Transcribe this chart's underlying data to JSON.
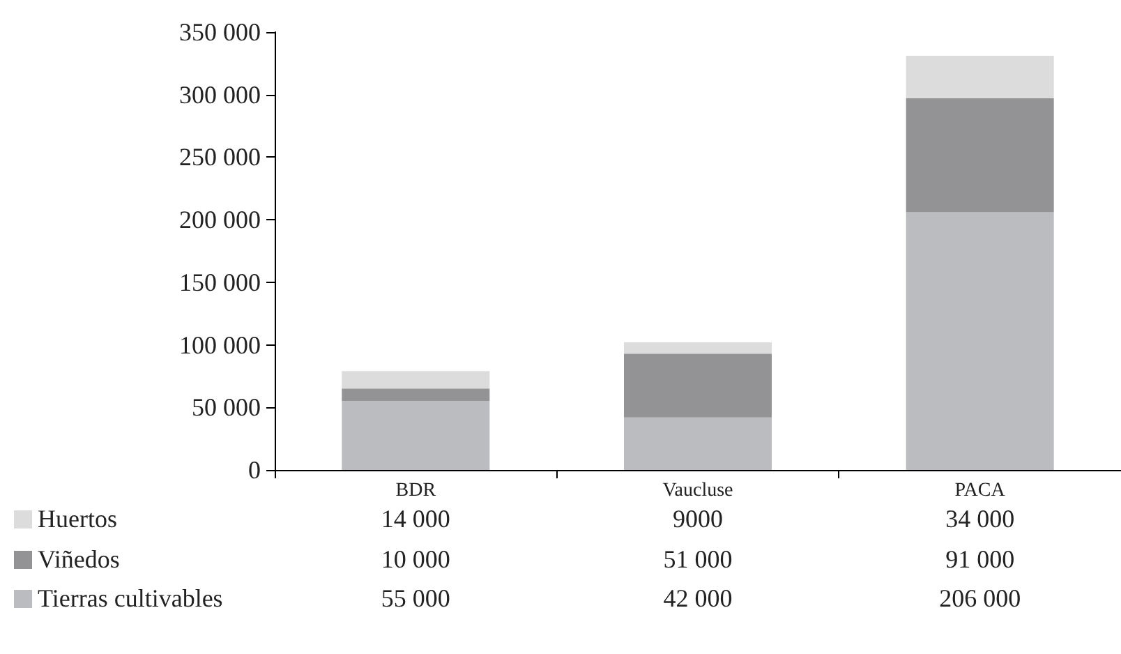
{
  "chart_data": {
    "type": "bar",
    "stacked": true,
    "categories": [
      "BDR",
      "Vaucluse",
      "PACA"
    ],
    "series": [
      {
        "name": "Tierras cultivables",
        "color": "#bbbcc0",
        "values": [
          55000,
          42000,
          206000
        ],
        "value_labels": [
          "55 000",
          "42 000",
          "206 000"
        ]
      },
      {
        "name": "Viñedos",
        "color": "#939396",
        "values": [
          10000,
          51000,
          91000
        ],
        "value_labels": [
          "10 000",
          "51 000",
          "91 000"
        ]
      },
      {
        "name": "Huertos",
        "color": "#dcdcdd",
        "values": [
          14000,
          9000,
          34000
        ],
        "value_labels": [
          "14 000",
          "9000",
          "34 000"
        ]
      }
    ],
    "ylim": [
      0,
      350000
    ],
    "yticks": [
      {
        "value": 0,
        "label": "0"
      },
      {
        "value": 50000,
        "label": "50 000"
      },
      {
        "value": 100000,
        "label": "100 000"
      },
      {
        "value": 150000,
        "label": "150 000"
      },
      {
        "value": 200000,
        "label": "200 000"
      },
      {
        "value": 250000,
        "label": "250 000"
      },
      {
        "value": 300000,
        "label": "300 000"
      },
      {
        "value": 350000,
        "label": "350 000"
      }
    ],
    "grid": false,
    "legend": "bottom"
  }
}
